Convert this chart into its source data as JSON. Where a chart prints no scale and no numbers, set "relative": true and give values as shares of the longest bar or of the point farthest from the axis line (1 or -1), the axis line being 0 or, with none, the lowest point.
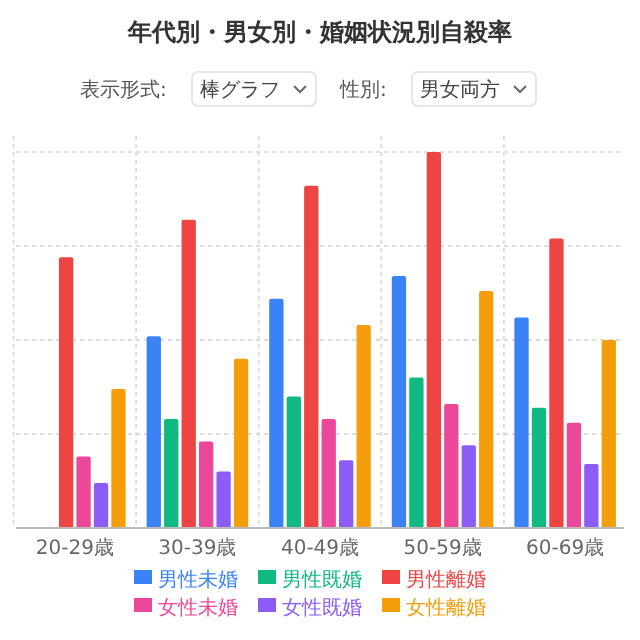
{
  "chart_data": {
    "type": "bar",
    "title": "年代別・男女別・婚姻状況別自殺率",
    "annotations": [
      "表示形式:",
      "棒グラフ",
      "性別:",
      "男女両方"
    ],
    "relative": true,
    "categories": [
      "20-29歳",
      "30-39歳",
      "40-49歳",
      "50-59歳",
      "60-69歳"
    ],
    "grid": true,
    "legend": "bottom",
    "series": [
      {
        "name": "男性未婚",
        "color": "#3b82f6",
        "values": [
          null,
          0.51,
          0.61,
          0.67,
          0.56
        ]
      },
      {
        "name": "男性既婚",
        "color": "#10b981",
        "values": [
          null,
          0.29,
          0.35,
          0.4,
          0.32
        ]
      },
      {
        "name": "男性離婚",
        "color": "#ef4444",
        "values": [
          0.72,
          0.82,
          0.91,
          1,
          0.77
        ]
      },
      {
        "name": "女性未婚",
        "color": "#ec4899",
        "values": [
          0.19,
          0.23,
          0.29,
          0.33,
          0.28
        ]
      },
      {
        "name": "女性既婚",
        "color": "#8b5cf6",
        "values": [
          0.12,
          0.15,
          0.18,
          0.22,
          0.17
        ]
      },
      {
        "name": "女性離婚",
        "color": "#f59e0b",
        "values": [
          0.37,
          0.45,
          0.54,
          0.63,
          0.5
        ]
      }
    ]
  }
}
